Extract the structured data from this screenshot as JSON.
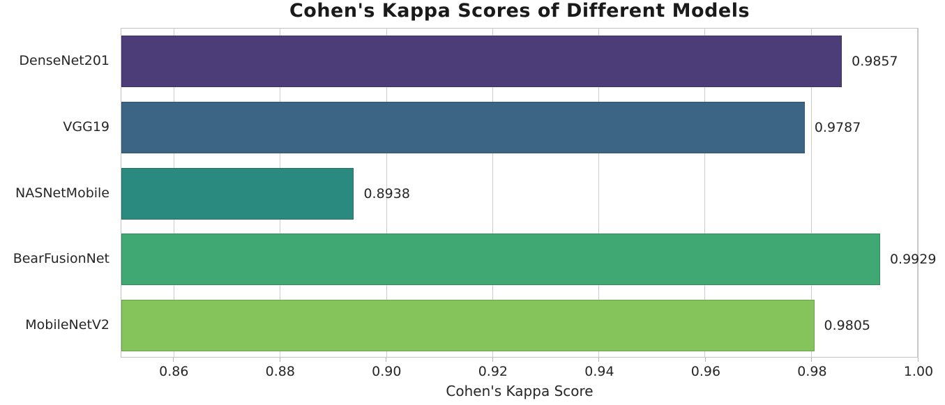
{
  "chart_data": {
    "type": "bar",
    "orientation": "horizontal",
    "title": "Cohen's Kappa Scores of Different Models",
    "xlabel": "Cohen's Kappa Score",
    "ylabel": "",
    "categories": [
      "DenseNet201",
      "VGG19",
      "NASNetMobile",
      "BearFusionNet",
      "MobileNetV2"
    ],
    "values": [
      0.9857,
      0.9787,
      0.8938,
      0.9929,
      0.9805
    ],
    "value_labels": [
      "0.9857",
      "0.9787",
      "0.8938",
      "0.9929",
      "0.9805"
    ],
    "bar_colors": [
      "#4c3c78",
      "#3c6484",
      "#2a8a80",
      "#3fa873",
      "#84c45b"
    ],
    "xlim": [
      0.85,
      1.0
    ],
    "xticks": [
      0.86,
      0.88,
      0.9,
      0.92,
      0.94,
      0.96,
      0.98,
      1.0
    ],
    "xtick_labels": [
      "0.86",
      "0.88",
      "0.90",
      "0.92",
      "0.94",
      "0.96",
      "0.98",
      "1.00"
    ],
    "grid": "vertical-gridlines-on",
    "legend": "none",
    "colors": {
      "gridline": "#cccccc",
      "spine": "#c3c3c3",
      "tick_mark": "#b5b5b5",
      "text": "#262626",
      "title_text": "#1a1a1a",
      "background": "#ffffff"
    }
  }
}
